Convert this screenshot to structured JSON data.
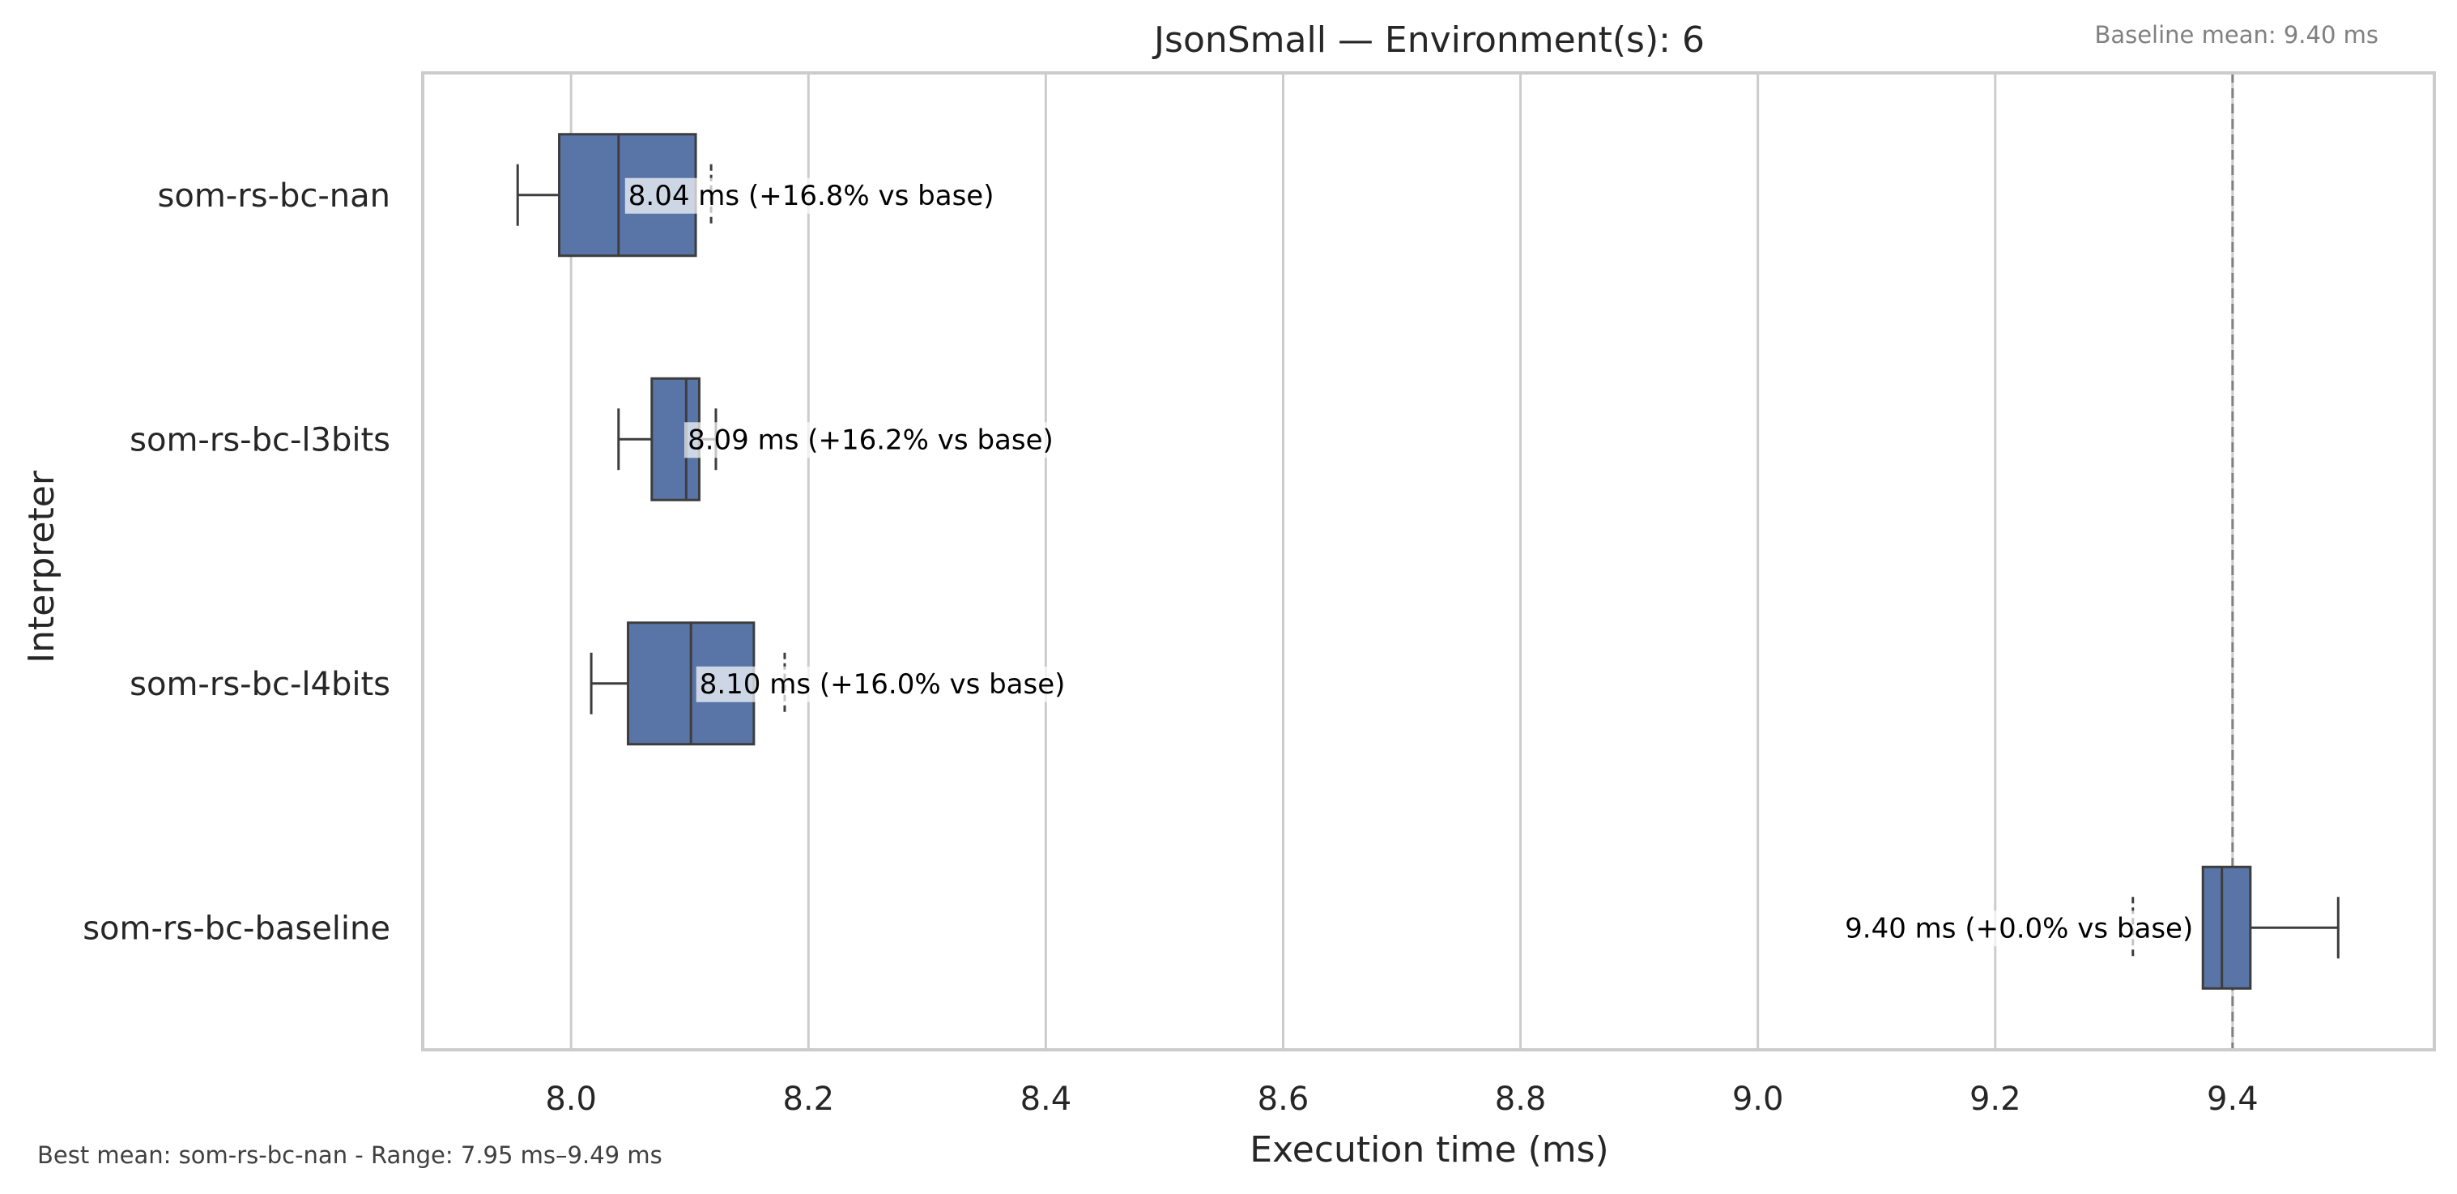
{
  "chart_data": {
    "type": "box",
    "orientation": "horizontal",
    "title": "JsonSmall — Environment(s): 6",
    "xlabel": "Execution time (ms)",
    "ylabel": "Interpreter",
    "xlim": [
      7.875,
      9.57
    ],
    "x_ticks": [
      8.0,
      8.2,
      8.4,
      8.6,
      8.8,
      9.0,
      9.2,
      9.4
    ],
    "x_tick_labels": [
      "8.0",
      "8.2",
      "8.4",
      "8.6",
      "8.8",
      "9.0",
      "9.2",
      "9.4"
    ],
    "grid": "vertical",
    "box_color": "#5975a8",
    "line_color": "#3d3d3d",
    "baseline_mean": 9.4,
    "baseline_label": "Baseline mean: 9.40 ms",
    "footer": "Best mean: som-rs-bc-nan - Range: 7.95 ms–9.49 ms",
    "categories": [
      "som-rs-bc-nan",
      "som-rs-bc-l3bits",
      "som-rs-bc-l4bits",
      "som-rs-bc-baseline"
    ],
    "boxes": [
      {
        "name": "som-rs-bc-nan",
        "whisker_low": 7.955,
        "q1": 7.99,
        "median": 8.04,
        "q3": 8.105,
        "whisker_high": 8.105,
        "mean": 8.04,
        "outliers": [
          8.118
        ],
        "annotation": "8.04 ms  (+16.8% vs base)"
      },
      {
        "name": "som-rs-bc-l3bits",
        "whisker_low": 8.04,
        "q1": 8.068,
        "median": 8.097,
        "q3": 8.108,
        "whisker_high": 8.122,
        "mean": 8.09,
        "outliers": [],
        "annotation": "8.09 ms  (+16.2% vs base)"
      },
      {
        "name": "som-rs-bc-l4bits",
        "whisker_low": 8.017,
        "q1": 8.048,
        "median": 8.101,
        "q3": 8.154,
        "whisker_high": 8.154,
        "mean": 8.1,
        "outliers": [
          8.18
        ],
        "annotation": "8.10 ms  (+16.0% vs base)"
      },
      {
        "name": "som-rs-bc-baseline",
        "whisker_low": 9.375,
        "q1": 9.375,
        "median": 9.391,
        "q3": 9.415,
        "whisker_high": 9.489,
        "mean": 9.4,
        "outliers": [
          9.316
        ],
        "annotation": "9.40 ms  (+0.0% vs base)"
      }
    ]
  }
}
